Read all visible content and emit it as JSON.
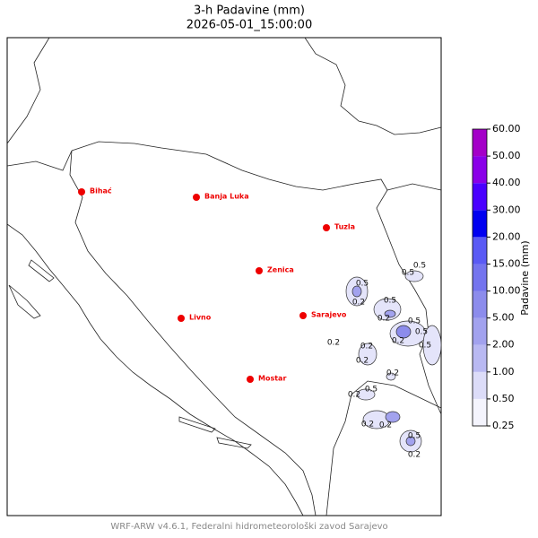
{
  "header": {
    "title": "3-h Padavine (mm)",
    "subtitle": "2026-05-01_15:00:00"
  },
  "map": {
    "cities": [
      "Bihać",
      "Banja Luka",
      "Tuzla",
      "Zenica",
      "Livno",
      "Sarajevo",
      "Mostar"
    ],
    "city_color": "#ee0000",
    "contour_labels": [
      "0.5",
      "0.2",
      "0.5",
      "0.2",
      "0.5",
      "0.5",
      "0.2",
      "0.5",
      "0.5",
      "0.2",
      "0.2",
      "0.2",
      "0.5",
      "0.2",
      "0.5",
      "0.2",
      "0.2",
      "0.2",
      "0.5",
      "0.2"
    ]
  },
  "colorbar": {
    "label": "Padavine (mm)",
    "ticks": [
      {
        "value": 0.25,
        "label": "0.25"
      },
      {
        "value": 0.5,
        "label": "0.50"
      },
      {
        "value": 1,
        "label": "1.00"
      },
      {
        "value": 2,
        "label": "2.00"
      },
      {
        "value": 5,
        "label": "5.00"
      },
      {
        "value": 10,
        "label": "10.00"
      },
      {
        "value": 15,
        "label": "15.00"
      },
      {
        "value": 20,
        "label": "20.00"
      },
      {
        "value": 30,
        "label": "30.00"
      },
      {
        "value": 40,
        "label": "40.00"
      },
      {
        "value": 50,
        "label": "50.00"
      },
      {
        "value": 60,
        "label": "60.00"
      }
    ],
    "colors": [
      "#f4f4fd",
      "#dcdcf8",
      "#b9b9f2",
      "#a2a2ee",
      "#8c8cec",
      "#7474ee",
      "#5a5af4",
      "#0000f0",
      "#4a00ff",
      "#8a00e8",
      "#a400c8"
    ]
  },
  "footer": "WRF-ARW v4.6.1, Federalni hidrometeorološki zavod Sarajevo"
}
